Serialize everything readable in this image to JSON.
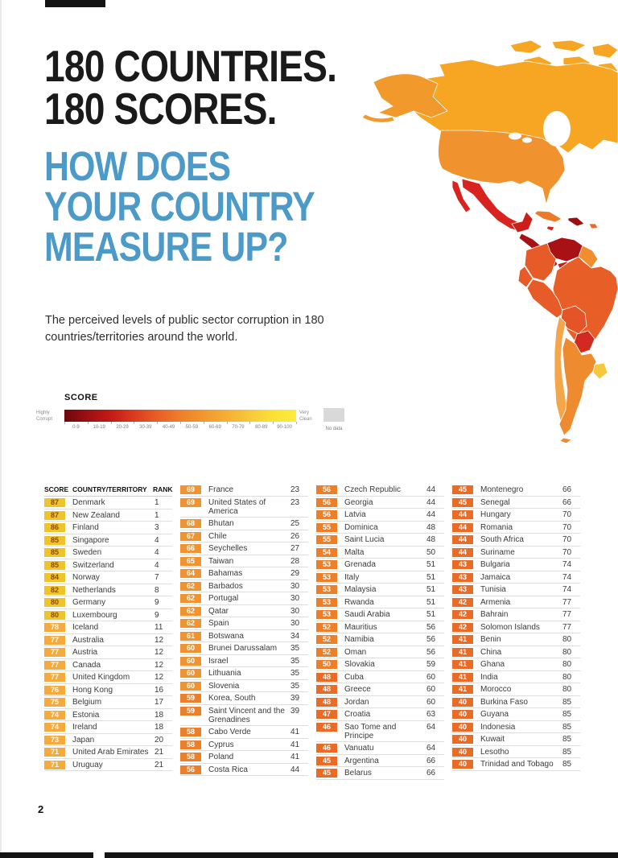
{
  "page": {
    "page_number": "2",
    "title_line1": "180 COUNTRIES.",
    "title_line2": "180 SCORES.",
    "subtitle_line1": "HOW DOES",
    "subtitle_line2": "YOUR COUNTRY",
    "subtitle_line3": "MEASURE UP?",
    "description": "The perceived levels of public sector corruption in 180 countries/territories around the world.",
    "colors": {
      "accent_blue": "#4B9AC7",
      "title_black": "#1A1A1A"
    }
  },
  "legend": {
    "title": "SCORE",
    "left_label": "Highly Corrupt",
    "right_label": "Very Clean",
    "ticks": [
      "0-9",
      "10-19",
      "20-29",
      "30-39",
      "40-49",
      "50-59",
      "60-69",
      "70-79",
      "80-89",
      "90-100"
    ],
    "no_data_label": "No data",
    "no_data_color": "#D9D9D9",
    "gradient": [
      "#6E080C",
      "#9C1013",
      "#C41A17",
      "#DC3A1E",
      "#E85E26",
      "#EF7E2A",
      "#F2972F",
      "#F5AF36",
      "#F7C83C",
      "#FBE136",
      "#FDEB3D"
    ]
  },
  "table": {
    "headers": {
      "score": "SCORE",
      "country": "COUNTRY/TERRITORY",
      "rank": "RANK"
    },
    "score_colors": {
      "8": {
        "bg": "#EFC32A",
        "fg": "#8F4A05"
      },
      "7": {
        "bg": "#F5AA3B",
        "fg": "#FFFFFF"
      },
      "6": {
        "bg": "#F19430",
        "fg": "#FFFFFF"
      },
      "5": {
        "bg": "#EE7F29",
        "fg": "#FFFFFF"
      },
      "4": {
        "bg": "#E96B25",
        "fg": "#FFFFFF"
      }
    },
    "columns": [
      {
        "has_header": true,
        "rows": [
          [
            87,
            "Denmark",
            1
          ],
          [
            87,
            "New Zealand",
            1
          ],
          [
            86,
            "Finland",
            3
          ],
          [
            85,
            "Singapore",
            4
          ],
          [
            85,
            "Sweden",
            4
          ],
          [
            85,
            "Switzerland",
            4
          ],
          [
            84,
            "Norway",
            7
          ],
          [
            82,
            "Netherlands",
            8
          ],
          [
            80,
            "Germany",
            9
          ],
          [
            80,
            "Luxembourg",
            9
          ],
          [
            78,
            "Iceland",
            11
          ],
          [
            77,
            "Australia",
            12
          ],
          [
            77,
            "Austria",
            12
          ],
          [
            77,
            "Canada",
            12
          ],
          [
            77,
            "United Kingdom",
            12
          ],
          [
            76,
            "Hong Kong",
            16
          ],
          [
            75,
            "Belgium",
            17
          ],
          [
            74,
            "Estonia",
            18
          ],
          [
            74,
            "Ireland",
            18
          ],
          [
            73,
            "Japan",
            20
          ],
          [
            71,
            "United Arab Emirates",
            21
          ],
          [
            71,
            "Uruguay",
            21
          ]
        ]
      },
      {
        "has_header": false,
        "rows": [
          [
            69,
            "France",
            23
          ],
          [
            69,
            "United States of America",
            23
          ],
          [
            68,
            "Bhutan",
            25
          ],
          [
            67,
            "Chile",
            26
          ],
          [
            66,
            "Seychelles",
            27
          ],
          [
            65,
            "Taiwan",
            28
          ],
          [
            64,
            "Bahamas",
            29
          ],
          [
            62,
            "Barbados",
            30
          ],
          [
            62,
            "Portugal",
            30
          ],
          [
            62,
            "Qatar",
            30
          ],
          [
            62,
            "Spain",
            30
          ],
          [
            61,
            "Botswana",
            34
          ],
          [
            60,
            "Brunei Darussalam",
            35
          ],
          [
            60,
            "Israel",
            35
          ],
          [
            60,
            "Lithuania",
            35
          ],
          [
            60,
            "Slovenia",
            35
          ],
          [
            59,
            "Korea, South",
            39
          ],
          [
            59,
            "Saint Vincent and the Grenadines",
            39
          ],
          [
            58,
            "Cabo Verde",
            41
          ],
          [
            58,
            "Cyprus",
            41
          ],
          [
            58,
            "Poland",
            41
          ],
          [
            56,
            "Costa Rica",
            44
          ]
        ]
      },
      {
        "has_header": false,
        "rows": [
          [
            56,
            "Czech Republic",
            44
          ],
          [
            56,
            "Georgia",
            44
          ],
          [
            56,
            "Latvia",
            44
          ],
          [
            55,
            "Dominica",
            48
          ],
          [
            55,
            "Saint Lucia",
            48
          ],
          [
            54,
            "Malta",
            50
          ],
          [
            53,
            "Grenada",
            51
          ],
          [
            53,
            "Italy",
            51
          ],
          [
            53,
            "Malaysia",
            51
          ],
          [
            53,
            "Rwanda",
            51
          ],
          [
            53,
            "Saudi Arabia",
            51
          ],
          [
            52,
            "Mauritius",
            56
          ],
          [
            52,
            "Namibia",
            56
          ],
          [
            52,
            "Oman",
            56
          ],
          [
            50,
            "Slovakia",
            59
          ],
          [
            48,
            "Cuba",
            60
          ],
          [
            48,
            "Greece",
            60
          ],
          [
            48,
            "Jordan",
            60
          ],
          [
            47,
            "Croatia",
            63
          ],
          [
            46,
            "Sao Tome and Principe",
            64
          ],
          [
            46,
            "Vanuatu",
            64
          ],
          [
            45,
            "Argentina",
            66
          ],
          [
            45,
            "Belarus",
            66
          ]
        ]
      },
      {
        "has_header": false,
        "rows": [
          [
            45,
            "Montenegro",
            66
          ],
          [
            45,
            "Senegal",
            66
          ],
          [
            44,
            "Hungary",
            70
          ],
          [
            44,
            "Romania",
            70
          ],
          [
            44,
            "South Africa",
            70
          ],
          [
            44,
            "Suriname",
            70
          ],
          [
            43,
            "Bulgaria",
            74
          ],
          [
            43,
            "Jamaica",
            74
          ],
          [
            43,
            "Tunisia",
            74
          ],
          [
            42,
            "Armenia",
            77
          ],
          [
            42,
            "Bahrain",
            77
          ],
          [
            42,
            "Solomon Islands",
            77
          ],
          [
            41,
            "Benin",
            80
          ],
          [
            41,
            "China",
            80
          ],
          [
            41,
            "Ghana",
            80
          ],
          [
            41,
            "India",
            80
          ],
          [
            41,
            "Morocco",
            80
          ],
          [
            40,
            "Burkina Faso",
            85
          ],
          [
            40,
            "Guyana",
            85
          ],
          [
            40,
            "Indonesia",
            85
          ],
          [
            40,
            "Kuwait",
            85
          ],
          [
            40,
            "Lesotho",
            85
          ],
          [
            40,
            "Trinidad and Tobago",
            85
          ]
        ]
      }
    ]
  },
  "map": {
    "region": "americas",
    "countries": {
      "arctic": "#F7A624",
      "canada": "#F7A624",
      "alaska": "#F2992C",
      "usa": "#F0922D",
      "mexico": "#D8231F",
      "yucatan": "#CE1E1C",
      "central_america": "#A81114",
      "panama": "#C42019",
      "cuba": "#EC7B29",
      "jamaica": "#D8231F",
      "hispaniola": "#9A0F12",
      "puerto_rico": "#E86A25",
      "venezuela": "#A81116",
      "guyana": "#F08D2E",
      "colombia": "#E65B27",
      "ecuador": "#E65B27",
      "peru": "#E65B27",
      "brazil": "#E75E27",
      "bolivia": "#E55426",
      "paraguay": "#D22A1E",
      "uruguay": "#F5C83E",
      "chile": "#F3A64A",
      "argentina": "#EE8B2E"
    }
  }
}
